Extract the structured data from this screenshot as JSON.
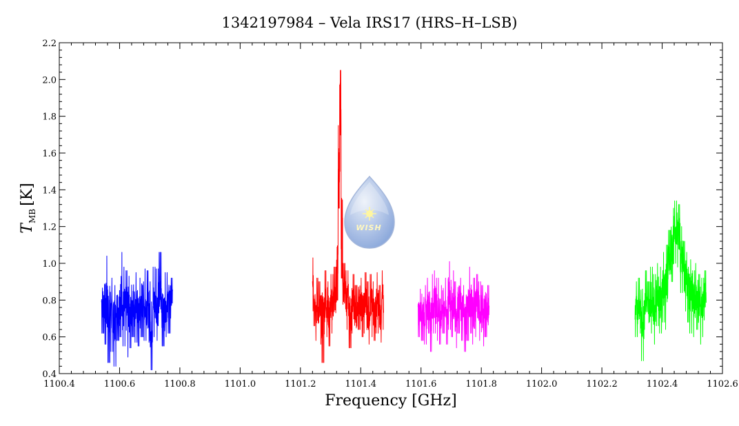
{
  "chart_data": {
    "type": "line",
    "title": "1342197984 – Vela IRS17 (HRS–H–LSB)",
    "xlabel": "Frequency [GHz]",
    "ylabel": {
      "symbol": "T",
      "subscript": "MB",
      "unit": "[K]"
    },
    "xlim": [
      1100.4,
      1102.6
    ],
    "ylim": [
      0.4,
      2.2
    ],
    "x_ticks": [
      "1100.4",
      "1100.6",
      "1100.8",
      "1101.0",
      "1101.2",
      "1101.4",
      "1101.6",
      "1101.8",
      "1102.0",
      "1102.2",
      "1102.4",
      "1102.6"
    ],
    "y_ticks": [
      "0.4",
      "0.6",
      "0.8",
      "1.0",
      "1.2",
      "1.4",
      "1.6",
      "1.8",
      "2.0",
      "2.2"
    ],
    "grid": false,
    "series": [
      {
        "color": "#0000ff",
        "x": [
          1100.54,
          1100.55,
          1100.56,
          1100.57,
          1100.58,
          1100.59,
          1100.6,
          1100.61,
          1100.62,
          1100.63,
          1100.64,
          1100.65,
          1100.66,
          1100.67,
          1100.68,
          1100.69,
          1100.7,
          1100.71,
          1100.72,
          1100.73,
          1100.74,
          1100.75,
          1100.76,
          1100.77
        ],
        "y": [
          0.78,
          0.72,
          0.8,
          0.74,
          0.7,
          0.76,
          0.81,
          0.73,
          0.77,
          0.72,
          0.79,
          0.75,
          0.71,
          0.8,
          0.76,
          0.74,
          0.69,
          0.78,
          0.75,
          0.82,
          0.73,
          0.77,
          0.8,
          0.84
        ],
        "y_min": [
          0.62,
          0.56,
          0.46,
          0.52,
          0.44,
          0.58,
          0.6,
          0.55,
          0.49,
          0.54,
          0.6,
          0.57,
          0.55,
          0.6,
          0.58,
          0.57,
          0.42,
          0.6,
          0.58,
          0.62,
          0.55,
          0.6,
          0.62,
          0.66
        ],
        "y_max": [
          0.98,
          1.04,
          0.96,
          0.92,
          0.88,
          0.94,
          1.06,
          0.98,
          0.96,
          0.93,
          1.0,
          0.95,
          0.92,
          0.99,
          0.97,
          0.96,
          0.9,
          0.98,
          0.97,
          1.06,
          0.93,
          0.95,
          0.96,
          0.92
        ]
      },
      {
        "color": "#ff0000",
        "x": [
          1101.24,
          1101.25,
          1101.26,
          1101.27,
          1101.28,
          1101.29,
          1101.3,
          1101.31,
          1101.32,
          1101.325,
          1101.33,
          1101.335,
          1101.34,
          1101.35,
          1101.36,
          1101.37,
          1101.38,
          1101.39,
          1101.4,
          1101.41,
          1101.42,
          1101.43,
          1101.44,
          1101.45,
          1101.46,
          1101.47
        ],
        "y": [
          0.82,
          0.76,
          0.74,
          0.72,
          0.78,
          0.74,
          0.77,
          0.8,
          0.98,
          1.6,
          1.9,
          1.2,
          0.86,
          0.8,
          0.74,
          0.78,
          0.72,
          0.8,
          0.75,
          0.79,
          0.73,
          0.77,
          0.74,
          0.78,
          0.72,
          0.8
        ],
        "y_min": [
          0.66,
          0.58,
          0.56,
          0.46,
          0.6,
          0.55,
          0.62,
          0.64,
          0.8,
          1.3,
          1.5,
          0.92,
          0.7,
          0.64,
          0.54,
          0.62,
          0.56,
          0.64,
          0.6,
          0.62,
          0.56,
          0.6,
          0.58,
          0.62,
          0.57,
          0.64
        ],
        "y_max": [
          1.03,
          0.92,
          0.9,
          0.98,
          0.96,
          0.9,
          0.94,
          0.98,
          1.2,
          1.75,
          2.05,
          1.5,
          1.0,
          0.96,
          0.9,
          0.94,
          0.88,
          0.96,
          0.92,
          0.95,
          0.9,
          0.94,
          0.9,
          0.95,
          0.88,
          0.96
        ]
      },
      {
        "color": "#ff00ff",
        "x": [
          1101.59,
          1101.6,
          1101.61,
          1101.62,
          1101.63,
          1101.64,
          1101.65,
          1101.66,
          1101.67,
          1101.68,
          1101.69,
          1101.7,
          1101.71,
          1101.72,
          1101.73,
          1101.74,
          1101.75,
          1101.76,
          1101.77,
          1101.78,
          1101.79,
          1101.8,
          1101.81,
          1101.82
        ],
        "y": [
          0.74,
          0.76,
          0.72,
          0.78,
          0.74,
          0.8,
          0.76,
          0.72,
          0.78,
          0.75,
          0.82,
          0.77,
          0.73,
          0.79,
          0.75,
          0.71,
          0.77,
          0.8,
          0.74,
          0.78,
          0.76,
          0.72,
          0.77,
          0.75
        ],
        "y_min": [
          0.6,
          0.58,
          0.56,
          0.62,
          0.52,
          0.62,
          0.58,
          0.56,
          0.62,
          0.56,
          0.64,
          0.6,
          0.54,
          0.62,
          0.58,
          0.52,
          0.58,
          0.62,
          0.56,
          0.6,
          0.58,
          0.55,
          0.6,
          0.58
        ],
        "y_max": [
          0.86,
          0.9,
          0.88,
          0.92,
          0.94,
          0.96,
          0.92,
          0.88,
          0.94,
          0.92,
          1.01,
          0.96,
          0.9,
          0.96,
          0.92,
          0.88,
          0.94,
          0.98,
          0.92,
          0.94,
          0.9,
          0.88,
          0.92,
          0.88
        ]
      },
      {
        "color": "#00ff00",
        "x": [
          1102.31,
          1102.32,
          1102.33,
          1102.34,
          1102.35,
          1102.36,
          1102.37,
          1102.38,
          1102.39,
          1102.4,
          1102.41,
          1102.42,
          1102.43,
          1102.44,
          1102.45,
          1102.46,
          1102.47,
          1102.48,
          1102.49,
          1102.5,
          1102.51,
          1102.52,
          1102.53,
          1102.54
        ],
        "y": [
          0.74,
          0.78,
          0.72,
          0.8,
          0.76,
          0.82,
          0.78,
          0.84,
          0.8,
          0.88,
          0.94,
          1.0,
          1.1,
          1.22,
          1.18,
          1.04,
          0.96,
          0.9,
          0.86,
          0.82,
          0.84,
          0.8,
          0.78,
          0.82
        ],
        "y_min": [
          0.6,
          0.62,
          0.47,
          0.64,
          0.6,
          0.62,
          0.56,
          0.66,
          0.62,
          0.68,
          0.64,
          0.8,
          0.9,
          1.0,
          0.98,
          0.84,
          0.74,
          0.68,
          0.62,
          0.6,
          0.64,
          0.56,
          0.6,
          0.63
        ],
        "y_max": [
          0.9,
          0.92,
          0.86,
          0.96,
          0.9,
          0.98,
          0.94,
          1.0,
          0.98,
          1.06,
          1.1,
          1.18,
          1.3,
          1.34,
          1.32,
          1.2,
          1.12,
          1.06,
          1.02,
          0.96,
          1.0,
          0.94,
          0.92,
          0.96
        ]
      }
    ]
  },
  "logo": {
    "text": "WISH",
    "color_top": "#e8eef8",
    "color_bottom": "#7f9fd8",
    "star_color": "#fff6a0"
  }
}
